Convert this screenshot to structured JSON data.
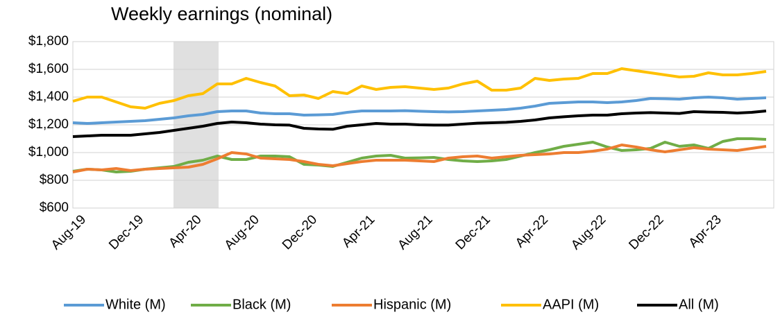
{
  "chart_data": {
    "type": "line",
    "title": "Weekly earnings (nominal)",
    "categories": [
      "Aug-19",
      null,
      null,
      null,
      "Dec-19",
      null,
      null,
      null,
      "Apr-20",
      null,
      null,
      null,
      "Aug-20",
      null,
      null,
      null,
      "Dec-20",
      null,
      null,
      null,
      "Apr-21",
      null,
      null,
      null,
      "Aug-21",
      null,
      null,
      null,
      "Dec-21",
      null,
      null,
      null,
      "Apr-22",
      null,
      null,
      null,
      "Aug-22",
      null,
      null,
      null,
      "Dec-22",
      null,
      null,
      null,
      "Apr-23",
      null,
      null,
      null,
      null
    ],
    "series": [
      {
        "name": "White (M)",
        "color": "#5b9bd5",
        "values": [
          1215,
          1210,
          1215,
          1220,
          1225,
          1230,
          1240,
          1250,
          1265,
          1275,
          1295,
          1300,
          1300,
          1285,
          1280,
          1280,
          1270,
          1272,
          1275,
          1290,
          1300,
          1300,
          1300,
          1302,
          1298,
          1295,
          1293,
          1295,
          1300,
          1305,
          1310,
          1320,
          1335,
          1355,
          1360,
          1365,
          1365,
          1360,
          1365,
          1375,
          1390,
          1388,
          1385,
          1395,
          1400,
          1395,
          1385,
          1390,
          1395
        ]
      },
      {
        "name": "Black (M)",
        "color": "#70ad47",
        "values": [
          865,
          880,
          875,
          860,
          865,
          880,
          890,
          900,
          930,
          945,
          975,
          950,
          950,
          975,
          975,
          970,
          915,
          910,
          900,
          930,
          960,
          975,
          980,
          960,
          962,
          965,
          950,
          940,
          935,
          940,
          950,
          975,
          1000,
          1020,
          1045,
          1060,
          1075,
          1040,
          1015,
          1020,
          1030,
          1075,
          1045,
          1055,
          1030,
          1080,
          1100,
          1100,
          1095
        ]
      },
      {
        "name": "Hispanic (M)",
        "color": "#ed7d31",
        "values": [
          860,
          880,
          875,
          885,
          870,
          880,
          885,
          890,
          895,
          915,
          955,
          1000,
          990,
          960,
          955,
          950,
          935,
          915,
          905,
          920,
          935,
          945,
          945,
          945,
          940,
          935,
          960,
          970,
          975,
          960,
          970,
          980,
          985,
          990,
          1000,
          1000,
          1010,
          1025,
          1055,
          1040,
          1020,
          1005,
          1020,
          1035,
          1025,
          1020,
          1015,
          1030,
          1045
        ]
      },
      {
        "name": "AAPI (M)",
        "color": "#ffc000",
        "values": [
          1370,
          1400,
          1400,
          1365,
          1330,
          1320,
          1355,
          1375,
          1410,
          1425,
          1495,
          1495,
          1535,
          1505,
          1480,
          1410,
          1415,
          1390,
          1440,
          1425,
          1480,
          1455,
          1470,
          1475,
          1465,
          1455,
          1465,
          1495,
          1515,
          1450,
          1450,
          1465,
          1535,
          1520,
          1530,
          1535,
          1570,
          1570,
          1605,
          1590,
          1575,
          1560,
          1545,
          1550,
          1575,
          1560,
          1560,
          1570,
          1585
        ]
      },
      {
        "name": "All (M)",
        "color": "#000000",
        "values": [
          1115,
          1120,
          1125,
          1125,
          1125,
          1135,
          1145,
          1160,
          1175,
          1190,
          1210,
          1220,
          1215,
          1205,
          1200,
          1198,
          1175,
          1170,
          1168,
          1190,
          1200,
          1210,
          1205,
          1205,
          1200,
          1198,
          1198,
          1205,
          1212,
          1215,
          1218,
          1225,
          1235,
          1250,
          1258,
          1265,
          1270,
          1270,
          1280,
          1285,
          1288,
          1285,
          1282,
          1295,
          1292,
          1290,
          1285,
          1290,
          1300
        ]
      }
    ],
    "ylim": [
      600,
      1800
    ],
    "yticks": [
      {
        "value": 600,
        "label": "$600"
      },
      {
        "value": 800,
        "label": "$800"
      },
      {
        "value": 1000,
        "label": "$1,000"
      },
      {
        "value": 1200,
        "label": "$1,200"
      },
      {
        "value": 1400,
        "label": "$1,400"
      },
      {
        "value": 1600,
        "label": "$1,600"
      },
      {
        "value": 1800,
        "label": "$1,800"
      }
    ],
    "grid": true,
    "legend": "bottom"
  }
}
